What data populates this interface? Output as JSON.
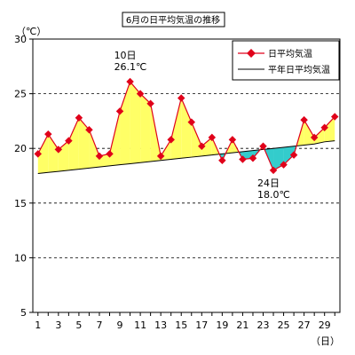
{
  "chart_data": {
    "type": "line",
    "title": "6月の日平均気温の推移",
    "y_unit": "（℃）",
    "x_unit": "（日）",
    "ylim": [
      5,
      30
    ],
    "yticks": [
      5,
      10,
      15,
      20,
      25,
      30
    ],
    "x": [
      1,
      2,
      3,
      4,
      5,
      6,
      7,
      8,
      9,
      10,
      11,
      12,
      13,
      14,
      15,
      16,
      17,
      18,
      19,
      20,
      21,
      22,
      23,
      24,
      25,
      26,
      27,
      28,
      29,
      30
    ],
    "xtick_labels": [
      "1",
      "3",
      "5",
      "7",
      "9",
      "11",
      "13",
      "15",
      "17",
      "19",
      "21",
      "23",
      "25",
      "27",
      "29"
    ],
    "xtick_values": [
      1,
      3,
      5,
      7,
      9,
      11,
      13,
      15,
      17,
      19,
      21,
      23,
      25,
      27,
      29
    ],
    "grid": "horizontal-dashed",
    "legend_position": "top-right",
    "series": [
      {
        "name": "日平均気温",
        "color": "#e0001a",
        "marker": "diamond",
        "values": [
          19.5,
          21.3,
          19.9,
          20.7,
          22.8,
          21.7,
          19.3,
          19.5,
          23.4,
          26.1,
          25.0,
          24.1,
          19.3,
          20.8,
          24.6,
          22.4,
          20.2,
          21.0,
          18.9,
          20.8,
          19.0,
          19.1,
          20.2,
          18.0,
          18.5,
          19.4,
          22.6,
          21.0,
          21.9,
          22.9
        ]
      },
      {
        "name": "平年日平均気温",
        "color": "#000000",
        "marker": "none",
        "values": [
          17.7,
          17.8,
          17.9,
          18.0,
          18.1,
          18.2,
          18.3,
          18.4,
          18.5,
          18.6,
          18.7,
          18.8,
          18.9,
          19.0,
          19.1,
          19.2,
          19.3,
          19.4,
          19.5,
          19.6,
          19.7,
          19.8,
          19.9,
          20.0,
          20.1,
          20.2,
          20.3,
          20.4,
          20.6,
          20.7
        ]
      }
    ],
    "fill_above_color": "#ffff66",
    "fill_below_color": "#33cccc",
    "annotations": [
      {
        "day": 10,
        "line1": "10日",
        "line2": "26.1℃"
      },
      {
        "day": 24,
        "line1": "24日",
        "line2": "18.0℃"
      }
    ]
  }
}
